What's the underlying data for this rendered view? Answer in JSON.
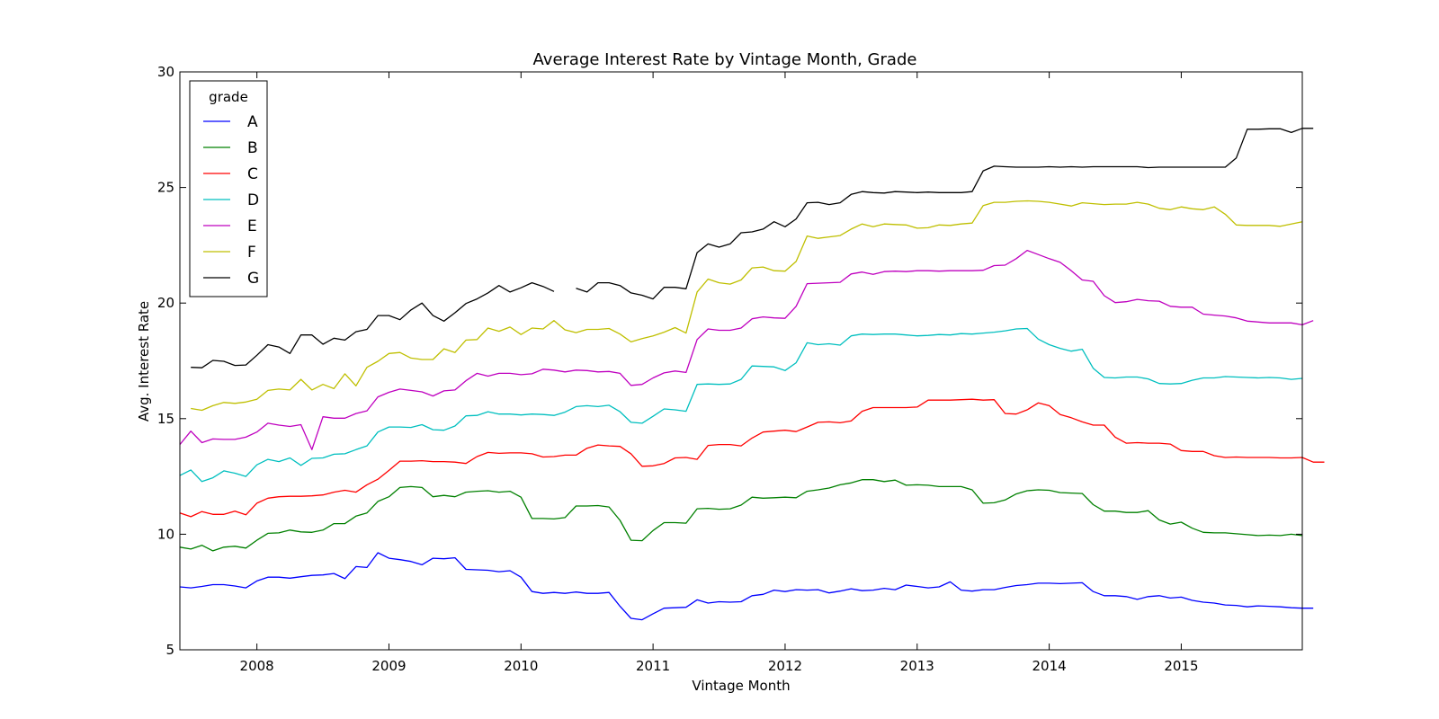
{
  "chart_data": {
    "type": "line",
    "title": "Average Interest Rate by Vintage Month, Grade",
    "xlabel": "Vintage Month",
    "ylabel": "Avg. Interest Rate",
    "xlim": [
      "2007-06",
      "2015-12"
    ],
    "ylim": [
      5,
      30
    ],
    "yticks": [
      5,
      10,
      15,
      20,
      25,
      30
    ],
    "xticks": [
      "2008",
      "2009",
      "2010",
      "2011",
      "2012",
      "2013",
      "2014",
      "2015"
    ],
    "grid": false,
    "legend": {
      "title": "grade",
      "position": "top-left"
    },
    "x_start": "2007-06",
    "x_step": "month",
    "series": [
      {
        "name": "A",
        "color": "#0000ff",
        "values": [
          7.72,
          7.68,
          7.74,
          7.82,
          7.82,
          7.76,
          7.68,
          7.98,
          8.14,
          8.14,
          8.1,
          8.16,
          8.22,
          8.24,
          8.3,
          8.08,
          8.6,
          8.56,
          9.2,
          8.96,
          8.9,
          8.82,
          8.68,
          8.96,
          8.94,
          8.98,
          8.48,
          8.46,
          8.44,
          8.38,
          8.42,
          8.14,
          7.52,
          7.44,
          7.48,
          7.44,
          7.5,
          7.44,
          7.44,
          7.48,
          6.88,
          6.36,
          6.3,
          6.56,
          6.8,
          6.82,
          6.84,
          7.16,
          7.02,
          7.08,
          7.06,
          7.08,
          7.34,
          7.4,
          7.58,
          7.52,
          7.6,
          7.58,
          7.6,
          7.46,
          7.54,
          7.64,
          7.56,
          7.58,
          7.66,
          7.6,
          7.8,
          7.74,
          7.68,
          7.72,
          7.94,
          7.58,
          7.54,
          7.6,
          7.6,
          7.7,
          7.78,
          7.82,
          7.88,
          7.88,
          7.86,
          7.88,
          7.9,
          7.52,
          7.34,
          7.34,
          7.3,
          7.18,
          7.3,
          7.34,
          7.24,
          7.28,
          7.14,
          7.06,
          7.02,
          6.94,
          6.92,
          6.86,
          6.9,
          6.88,
          6.86,
          6.82,
          6.8,
          6.8
        ]
      },
      {
        "name": "B",
        "color": "#008000",
        "values": [
          9.44,
          9.36,
          9.52,
          9.28,
          9.44,
          9.48,
          9.4,
          9.74,
          10.04,
          10.06,
          10.18,
          10.1,
          10.08,
          10.18,
          10.46,
          10.46,
          10.78,
          10.92,
          11.42,
          11.62,
          12.02,
          12.06,
          12.02,
          11.62,
          11.68,
          11.62,
          11.82,
          11.86,
          11.88,
          11.82,
          11.86,
          11.6,
          10.68,
          10.68,
          10.66,
          10.72,
          11.22,
          11.22,
          11.24,
          11.18,
          10.6,
          9.74,
          9.72,
          10.16,
          10.5,
          10.5,
          10.48,
          11.1,
          11.12,
          11.08,
          11.1,
          11.26,
          11.6,
          11.56,
          11.58,
          11.6,
          11.58,
          11.86,
          11.92,
          12.0,
          12.14,
          12.22,
          12.36,
          12.36,
          12.28,
          12.34,
          12.12,
          12.14,
          12.12,
          12.06,
          12.06,
          12.06,
          11.92,
          11.34,
          11.36,
          11.48,
          11.74,
          11.88,
          11.92,
          11.9,
          11.8,
          11.78,
          11.76,
          11.28,
          11.0,
          11.0,
          10.94,
          10.94,
          11.02,
          10.62,
          10.44,
          10.52,
          10.26,
          10.08,
          10.06,
          10.06,
          10.02,
          9.98,
          9.94,
          9.96,
          9.94,
          10.0,
          9.94
        ]
      },
      {
        "name": "C",
        "color": "#ff0000",
        "values": [
          10.92,
          10.76,
          10.98,
          10.86,
          10.86,
          11.0,
          10.84,
          11.34,
          11.56,
          11.62,
          11.64,
          11.64,
          11.66,
          11.7,
          11.82,
          11.9,
          11.82,
          12.14,
          12.38,
          12.76,
          13.16,
          13.16,
          13.18,
          13.14,
          13.14,
          13.12,
          13.06,
          13.36,
          13.54,
          13.5,
          13.52,
          13.52,
          13.48,
          13.34,
          13.36,
          13.42,
          13.42,
          13.72,
          13.86,
          13.82,
          13.8,
          13.48,
          12.94,
          12.96,
          13.06,
          13.3,
          13.32,
          13.24,
          13.84,
          13.88,
          13.88,
          13.82,
          14.16,
          14.42,
          14.46,
          14.5,
          14.44,
          14.64,
          14.84,
          14.86,
          14.82,
          14.9,
          15.32,
          15.48,
          15.48,
          15.48,
          15.48,
          15.5,
          15.8,
          15.8,
          15.8,
          15.82,
          15.84,
          15.8,
          15.82,
          15.22,
          15.2,
          15.38,
          15.68,
          15.56,
          15.18,
          15.04,
          14.86,
          14.72,
          14.72,
          14.2,
          13.94,
          13.96,
          13.94,
          13.94,
          13.9,
          13.62,
          13.58,
          13.58,
          13.4,
          13.32,
          13.34,
          13.32,
          13.32,
          13.32,
          13.3,
          13.3,
          13.32,
          13.12,
          13.12
        ]
      },
      {
        "name": "D",
        "color": "#00bfbf",
        "values": [
          12.54,
          12.78,
          12.28,
          12.44,
          12.74,
          12.64,
          12.5,
          13.0,
          13.24,
          13.14,
          13.3,
          12.98,
          13.28,
          13.3,
          13.46,
          13.48,
          13.66,
          13.82,
          14.42,
          14.64,
          14.64,
          14.62,
          14.74,
          14.52,
          14.5,
          14.68,
          15.12,
          15.14,
          15.3,
          15.2,
          15.2,
          15.16,
          15.2,
          15.18,
          15.14,
          15.28,
          15.52,
          15.56,
          15.52,
          15.58,
          15.3,
          14.84,
          14.8,
          15.1,
          15.42,
          15.38,
          15.32,
          16.48,
          16.5,
          16.48,
          16.5,
          16.7,
          17.28,
          17.26,
          17.24,
          17.08,
          17.42,
          18.28,
          18.2,
          18.24,
          18.18,
          18.58,
          18.66,
          18.64,
          18.66,
          18.66,
          18.62,
          18.58,
          18.6,
          18.64,
          18.62,
          18.68,
          18.66,
          18.7,
          18.74,
          18.8,
          18.88,
          18.9,
          18.44,
          18.2,
          18.04,
          17.92,
          18.0,
          17.18,
          16.78,
          16.76,
          16.8,
          16.8,
          16.72,
          16.52,
          16.5,
          16.52,
          16.66,
          16.76,
          16.76,
          16.82,
          16.8,
          16.78,
          16.76,
          16.78,
          16.76,
          16.7,
          16.74
        ]
      },
      {
        "name": "E",
        "color": "#bf00bf",
        "values": [
          13.88,
          14.46,
          13.96,
          14.12,
          14.1,
          14.1,
          14.2,
          14.42,
          14.8,
          14.72,
          14.66,
          14.74,
          13.66,
          15.08,
          15.02,
          15.02,
          15.22,
          15.34,
          15.94,
          16.14,
          16.28,
          16.22,
          16.16,
          15.98,
          16.2,
          16.24,
          16.64,
          16.96,
          16.84,
          16.96,
          16.96,
          16.9,
          16.94,
          17.14,
          17.1,
          17.02,
          17.1,
          17.08,
          17.02,
          17.04,
          16.96,
          16.44,
          16.48,
          16.76,
          16.98,
          17.06,
          17.0,
          18.42,
          18.88,
          18.82,
          18.82,
          18.92,
          19.32,
          19.4,
          19.36,
          19.34,
          19.86,
          20.84,
          20.86,
          20.88,
          20.9,
          21.26,
          21.34,
          21.24,
          21.36,
          21.38,
          21.36,
          21.4,
          21.4,
          21.38,
          21.4,
          21.4,
          21.4,
          21.42,
          21.62,
          21.64,
          21.92,
          22.28,
          22.1,
          21.92,
          21.76,
          21.4,
          21.0,
          20.94,
          20.32,
          20.02,
          20.06,
          20.16,
          20.1,
          20.08,
          19.86,
          19.82,
          19.82,
          19.52,
          19.48,
          19.44,
          19.36,
          19.22,
          19.18,
          19.14,
          19.14,
          19.14,
          19.06,
          19.24
        ]
      },
      {
        "name": "F",
        "color": "#bfbf00",
        "values": [
          null,
          15.44,
          15.36,
          15.56,
          15.7,
          15.66,
          15.72,
          15.84,
          16.22,
          16.28,
          16.24,
          16.7,
          16.24,
          16.48,
          16.3,
          16.94,
          16.42,
          17.22,
          17.48,
          17.82,
          17.86,
          17.62,
          17.56,
          17.56,
          18.02,
          17.86,
          18.4,
          18.42,
          18.92,
          18.78,
          18.96,
          18.64,
          18.92,
          18.88,
          19.24,
          18.84,
          18.72,
          18.86,
          18.86,
          18.9,
          18.66,
          18.32,
          18.46,
          18.58,
          18.74,
          18.94,
          18.7,
          20.48,
          21.04,
          20.88,
          20.82,
          21.0,
          21.52,
          21.56,
          21.4,
          21.38,
          21.8,
          22.9,
          22.8,
          22.86,
          22.92,
          23.2,
          23.42,
          23.3,
          23.42,
          23.4,
          23.38,
          23.24,
          23.26,
          23.38,
          23.36,
          23.42,
          23.46,
          24.22,
          24.36,
          24.36,
          24.4,
          24.42,
          24.4,
          24.36,
          24.28,
          24.2,
          24.34,
          24.3,
          24.26,
          24.28,
          24.28,
          24.36,
          24.28,
          24.1,
          24.04,
          24.16,
          24.08,
          24.04,
          24.16,
          23.84,
          23.38,
          23.36,
          23.36,
          23.36,
          23.32,
          23.42,
          23.52
        ]
      },
      {
        "name": "G",
        "color": "#000000",
        "values": [
          null,
          17.22,
          17.2,
          17.52,
          17.48,
          17.3,
          17.32,
          17.74,
          18.2,
          18.1,
          17.82,
          18.62,
          18.62,
          18.22,
          18.48,
          18.4,
          18.76,
          18.86,
          19.46,
          19.46,
          19.28,
          19.7,
          20.0,
          19.46,
          19.22,
          19.58,
          19.98,
          20.18,
          20.44,
          20.76,
          20.48,
          20.66,
          20.88,
          20.72,
          20.5,
          null,
          20.64,
          20.48,
          20.88,
          20.88,
          20.76,
          20.44,
          20.34,
          20.18,
          20.68,
          20.68,
          20.62,
          22.18,
          22.56,
          22.42,
          22.56,
          23.04,
          23.08,
          23.2,
          23.52,
          23.3,
          23.64,
          24.34,
          24.36,
          24.26,
          24.34,
          24.7,
          24.82,
          24.78,
          24.76,
          24.82,
          24.8,
          24.78,
          24.8,
          24.78,
          24.78,
          24.78,
          24.82,
          25.72,
          25.92,
          25.9,
          25.88,
          25.88,
          25.88,
          25.9,
          25.88,
          25.9,
          25.88,
          25.9,
          25.9,
          25.9,
          25.9,
          25.9,
          25.86,
          25.88,
          25.88,
          25.88,
          25.88,
          25.88,
          25.88,
          25.88,
          26.28,
          27.52,
          27.52,
          27.54,
          27.54,
          27.38,
          27.56,
          27.56
        ]
      }
    ]
  }
}
